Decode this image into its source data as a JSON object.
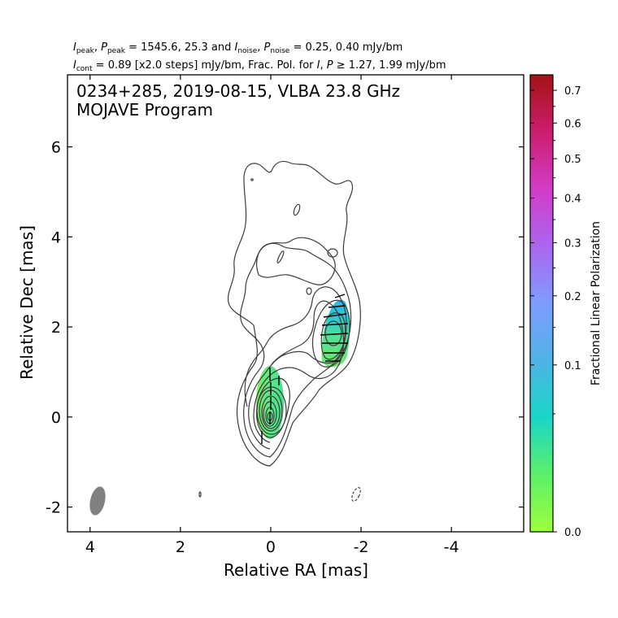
{
  "header": {
    "line1": "I_peak, P_peak = 1545.6, 25.3 and I_noise, P_noise = 0.25, 0.40 mJy/bm",
    "line1_parts": {
      "i_peak_p_peak": ", ",
      "peak_values": " = 1545.6, 25.3 and ",
      "noise_values": " = 0.25, 0.40 mJy/bm",
      "I": "I",
      "P": "P",
      "sub_peak": "peak",
      "sub_noise": "noise"
    },
    "line2": "I_cont = 0.89 [x2.0 steps] mJy/bm, Frac. Pol. for I, P ≥ 1.27, 1.99 mJy/bm",
    "line2_parts": {
      "I": "I",
      "P": "P",
      "sub_cont": "cont",
      "cont_text": " = 0.89 [x2.0 steps] mJy/bm, Frac. Pol. for ",
      "sep": ", ",
      "ge_text": " ≥ 1.27, 1.99 mJy/bm"
    }
  },
  "chart_data": {
    "type": "contour",
    "title_line1": "0234+285, 2019-08-15, VLBA 23.8 GHz",
    "title_line2": "MOJAVE Program",
    "xlabel": "Relative RA [mas]",
    "ylabel": "Relative Dec [mas]",
    "xlim": [
      4.5,
      -5.6
    ],
    "ylim": [
      -2.55,
      7.6
    ],
    "x_ticks": [
      4,
      2,
      0,
      -2,
      -4
    ],
    "y_ticks": [
      -2,
      0,
      2,
      4,
      6
    ],
    "colorbar": {
      "label": "Fractional Linear Polarization",
      "range": [
        0.0,
        0.75
      ],
      "ticks": [
        0.0,
        0.1,
        0.2,
        0.3,
        0.4,
        0.5,
        0.6,
        0.7
      ],
      "scale": "sqrt",
      "colors": [
        "#9cff3c",
        "#5cf06a",
        "#1ad6c8",
        "#4fb3e6",
        "#7f9cff",
        "#aa66f0",
        "#d23cc8",
        "#cc1e6e",
        "#a31214"
      ]
    },
    "contour_levels_mJy": [
      0.89,
      1.78,
      3.56,
      7.12,
      14.24,
      28.48,
      56.96,
      113.92,
      227.84,
      455.68,
      911.36
    ],
    "peaks": {
      "core": {
        "ra": 0.0,
        "dec": 0.0,
        "flux_mJy": 1545.6
      },
      "jet_knot": {
        "ra": -1.4,
        "dec": 1.9
      }
    },
    "beam": {
      "ra": 3.8,
      "dec": -1.9,
      "major_mas": 0.65,
      "minor_mas": 0.33,
      "pa_deg": -13
    },
    "polarization": [
      {
        "region": "core",
        "ra": 0.0,
        "dec": 0.1,
        "frac_pol": 0.05
      },
      {
        "region": "jet_knot",
        "ra": -1.45,
        "dec": 1.9,
        "frac_pol": 0.09
      }
    ]
  }
}
